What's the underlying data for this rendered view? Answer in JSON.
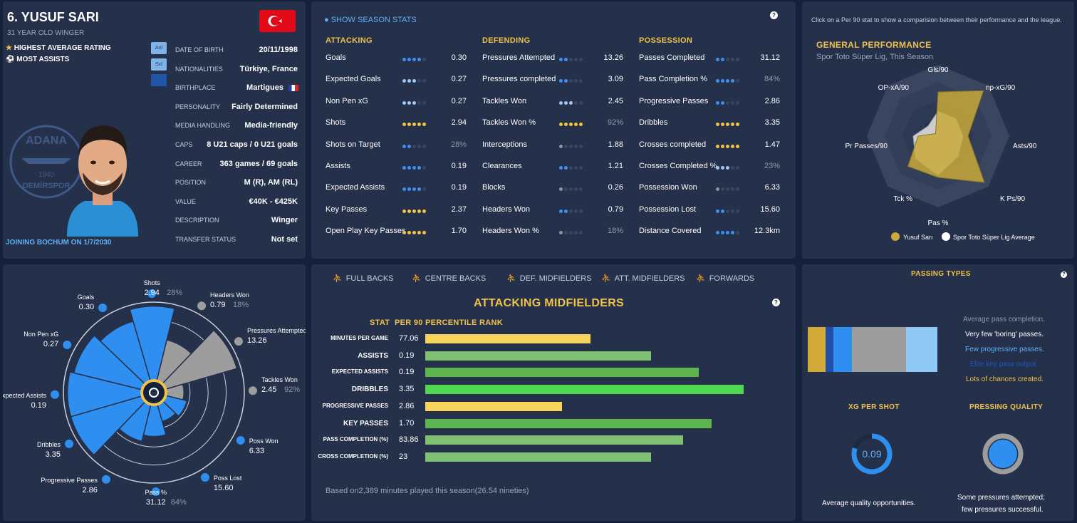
{
  "player": {
    "name": "6. YUSUF SARI",
    "subtitle": "31 YEAR OLD WINGER",
    "badge1": "HIGHEST AVERAGE RATING",
    "badge2": "MOST ASSISTS",
    "joining": "JOINING BOCHUM ON 1/7/2030",
    "tabs": [
      "Anl",
      "Sct",
      ""
    ],
    "details": [
      {
        "label": "DATE OF BIRTH",
        "value": "20/11/1998"
      },
      {
        "label": "NATIONALITIES",
        "value": "Türkiye, France"
      },
      {
        "label": "BIRTHPLACE",
        "value": "Martigues"
      },
      {
        "label": "PERSONALITY",
        "value": "Fairly Determined"
      },
      {
        "label": "MEDIA HANDLING",
        "value": "Media-friendly"
      },
      {
        "label": "CAPS",
        "value": "8 U21 caps / 0 U21 goals"
      },
      {
        "label": "CAREER",
        "value": "363  games /  69  goals"
      },
      {
        "label": "POSITION",
        "value": "M (R), AM (RL)"
      },
      {
        "label": "VALUE",
        "value": "€40K - €425K"
      },
      {
        "label": "DESCRIPTION",
        "value": "Winger"
      },
      {
        "label": "TRANSFER STATUS",
        "value": "Not set"
      }
    ],
    "club_logo_text": [
      "ADANA",
      "DEMİRSPOR",
      "1940"
    ]
  },
  "season": {
    "toggle": "SHOW SEASON STATS",
    "help": "?",
    "columns": [
      {
        "title": "ATTACKING",
        "rows": [
          {
            "label": "Goals",
            "dots": 4,
            "scheme": "b",
            "value": "0.30"
          },
          {
            "label": "Expected Goals",
            "dots": 3,
            "scheme": "w",
            "value": "0.27"
          },
          {
            "label": "Non Pen xG",
            "dots": 3,
            "scheme": "w",
            "value": "0.27"
          },
          {
            "label": "Shots",
            "dots": 5,
            "scheme": "y",
            "value": "2.94"
          },
          {
            "label": "Shots on Target",
            "dots": 2,
            "scheme": "b",
            "value": "28%",
            "muted": true
          },
          {
            "label": "Assists",
            "dots": 4,
            "scheme": "b",
            "value": "0.19"
          },
          {
            "label": "Expected Assists",
            "dots": 4,
            "scheme": "b",
            "value": "0.19"
          },
          {
            "label": "Key Passes",
            "dots": 5,
            "scheme": "y",
            "value": "2.37"
          },
          {
            "label": "Open Play Key Passes",
            "dots": 5,
            "scheme": "y",
            "value": "1.70"
          }
        ]
      },
      {
        "title": "DEFENDING",
        "rows": [
          {
            "label": "Pressures Attempted",
            "dots": 2,
            "scheme": "b",
            "value": "13.26"
          },
          {
            "label": "Pressures completed",
            "dots": 2,
            "scheme": "b",
            "value": "3.09"
          },
          {
            "label": "Tackles Won",
            "dots": 3,
            "scheme": "w",
            "value": "2.45"
          },
          {
            "label": "Tackles Won %",
            "dots": 5,
            "scheme": "y",
            "value": "92%",
            "muted": true
          },
          {
            "label": "Interceptions",
            "dots": 1,
            "scheme": "g",
            "value": "1.88"
          },
          {
            "label": "Clearances",
            "dots": 2,
            "scheme": "b",
            "value": "1.21"
          },
          {
            "label": "Blocks",
            "dots": 1,
            "scheme": "g",
            "value": "0.26"
          },
          {
            "label": "Headers Won",
            "dots": 2,
            "scheme": "b",
            "value": "0.79"
          },
          {
            "label": "Headers Won %",
            "dots": 1,
            "scheme": "g",
            "value": "18%",
            "muted": true
          }
        ]
      },
      {
        "title": "POSSESSION",
        "rows": [
          {
            "label": "Passes Completed",
            "dots": 2,
            "scheme": "b",
            "value": "31.12"
          },
          {
            "label": "Pass Completion %",
            "dots": 4,
            "scheme": "b",
            "value": "84%",
            "muted": true
          },
          {
            "label": "Progressive Passes",
            "dots": 2,
            "scheme": "b",
            "value": "2.86"
          },
          {
            "label": "Dribbles",
            "dots": 5,
            "scheme": "y",
            "value": "3.35"
          },
          {
            "label": "Crosses completed",
            "dots": 5,
            "scheme": "y",
            "value": "1.47"
          },
          {
            "label": "Crosses Completed %",
            "dots": 3,
            "scheme": "w",
            "value": "23%",
            "muted": true
          },
          {
            "label": "Possession Won",
            "dots": 1,
            "scheme": "g",
            "value": "6.33"
          },
          {
            "label": "Possession Lost",
            "dots": 2,
            "scheme": "b",
            "value": "15.60"
          },
          {
            "label": "Distance Covered",
            "dots": 4,
            "scheme": "b",
            "value": "12.3km"
          }
        ]
      }
    ]
  },
  "general": {
    "hint": "Click on a Per 90 stat to show a comparision between their performance and the league.",
    "title": "GENERAL PERFORMANCE",
    "subtitle": "Spor Toto Süper Lig, This Season",
    "legend_player": "Yusuf Sarı",
    "legend_avg": "Spor Toto Süper Lig Average",
    "player_color": "#c9a93a",
    "avg_color": "#dddddd"
  },
  "chart_data": [
    {
      "type": "radar",
      "title": "GENERAL PERFORMANCE",
      "axes": [
        "Gls/90",
        "np-xG/90",
        "Asts/90",
        "K Ps/90",
        "Pas %",
        "Tck %",
        "Pr Passes/90",
        "OP-xA/90"
      ],
      "series": [
        {
          "name": "Yusuf Sarı",
          "values": [
            0.62,
            0.9,
            0.42,
            0.92,
            0.58,
            0.6,
            0.28,
            0.05
          ]
        },
        {
          "name": "Spor Toto Süper Lig Average",
          "values": [
            0.35,
            0.35,
            0.35,
            0.4,
            0.55,
            0.45,
            0.35,
            0.2
          ]
        }
      ],
      "range": [
        0,
        1
      ]
    },
    {
      "type": "polar",
      "title": "Pizza chart",
      "series": [
        {
          "label": "Goals",
          "value": "0.30",
          "pct": 80,
          "color": "#2f8ff0"
        },
        {
          "label": "Shots",
          "value": "2.94",
          "extra": "28%",
          "pct": 95,
          "color": "#2f8ff0"
        },
        {
          "label": "Headers Won",
          "value": "0.79",
          "extra": "18%",
          "pct": 55,
          "color": "#9d9d9d"
        },
        {
          "label": "Pressures Attempted",
          "value": "13.26",
          "pct": 95,
          "color": "#9d9d9d"
        },
        {
          "label": "Tackles Won",
          "value": "2.45",
          "extra": "92%",
          "pct": 25,
          "color": "#9d9d9d"
        },
        {
          "label": "Poss Won",
          "value": "6.33",
          "pct": 30,
          "color": "#2f8ff0"
        },
        {
          "label": "Poss Lost",
          "value": "15.60",
          "pct": 25,
          "color": "#2f8ff0"
        },
        {
          "label": "Pass %",
          "value": "31.12",
          "extra": "84%",
          "pct": 42,
          "color": "#2f8ff0"
        },
        {
          "label": "Progressive Passes",
          "value": "2.86",
          "pct": 50,
          "color": "#2f8ff0"
        },
        {
          "label": "Dribbles",
          "value": "3.35",
          "pct": 95,
          "color": "#2f8ff0"
        },
        {
          "label": "Expected Assists",
          "value": "0.19",
          "pct": 95,
          "color": "#2f8ff0"
        },
        {
          "label": "Non Pen xG",
          "value": "0.27",
          "pct": 90,
          "color": "#2f8ff0"
        }
      ]
    },
    {
      "type": "bar",
      "title": "ATTACKING MIDFIELDERS",
      "xlabel": "PERCENTILE RANK",
      "categories": [
        "MINUTES PER GAME",
        "ASSISTS",
        "EXPECTED ASSISTS",
        "DRIBBLES",
        "PROGRESSIVE PASSES",
        "KEY PASSES",
        "PASS COMPLETION (%)",
        "CROSS COMPLETION (%)"
      ],
      "per90": [
        "77.06",
        "0.19",
        "0.19",
        "3.35",
        "2.86",
        "1.70",
        "83.86",
        "23"
      ],
      "values": [
        52,
        71,
        86,
        100,
        43,
        90,
        81,
        71
      ],
      "colors": [
        "#f6d35a",
        "#7fbf71",
        "#5eb54f",
        "#4fd84f",
        "#f6d35a",
        "#5eb54f",
        "#7fbf71",
        "#7fbf71"
      ],
      "xlim": [
        0,
        100
      ]
    }
  ],
  "percentiles": {
    "tabs": [
      "FULL BACKS",
      "CENTRE BACKS",
      "DEF. MIDFIELDERS",
      "ATT. MIDFIELDERS",
      "FORWARDS"
    ],
    "heading": "ATTACKING MIDFIELDERS",
    "col_stat": "STAT",
    "col_per90": "PER 90",
    "col_rank": "PERCENTILE RANK",
    "footer": "Based on2,389 minutes played this season(26.54 nineties)"
  },
  "passing": {
    "title": "PASSING TYPES",
    "lines": [
      "Average pass completion.",
      "Very few 'boring' passes.",
      "Few progressive passes.",
      "Elite key pass output.",
      "Lots of chances created."
    ],
    "segments": [
      {
        "color": "#d2aa3a",
        "share": 0.14
      },
      {
        "color": "#1f4fa8",
        "share": 0.06
      },
      {
        "color": "#2f8ff0",
        "share": 0.14
      },
      {
        "color": "#9d9d9d",
        "share": 0.42
      },
      {
        "color": "#8fc7f5",
        "share": 0.24
      }
    ]
  },
  "xg": {
    "title": "XG PER SHOT",
    "value": "0.09",
    "caption": "Average quality opportunities.",
    "fraction": 0.8
  },
  "pressing": {
    "title": "PRESSING QUALITY",
    "caption1": "Some pressures attempted;",
    "caption2": "few pressures successful."
  }
}
